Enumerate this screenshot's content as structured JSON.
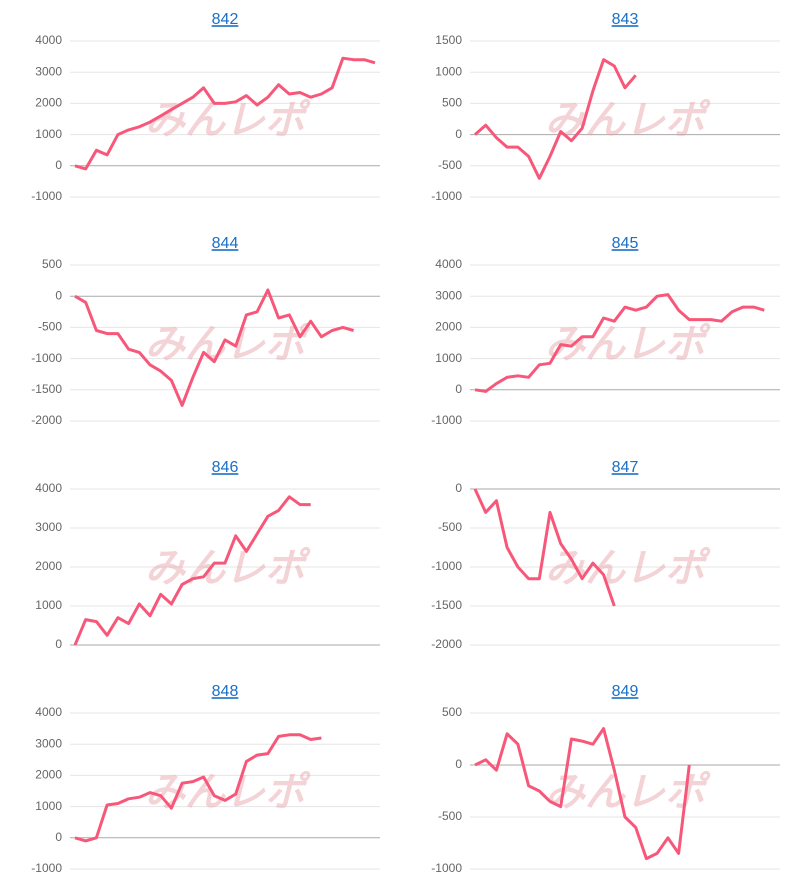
{
  "watermark": "みんレポ",
  "chart_data": [
    {
      "type": "line",
      "title": "842",
      "color": "#f7587a",
      "ylim": [
        -1000,
        4000
      ],
      "yticks": [
        -1000,
        0,
        1000,
        2000,
        3000,
        4000
      ],
      "grid": true,
      "values": [
        0,
        -100,
        500,
        350,
        1000,
        1150,
        1250,
        1400,
        1600,
        1800,
        2000,
        2200,
        2500,
        2000,
        2000,
        2050,
        2250,
        1950,
        2200,
        2600,
        2300,
        2350,
        2200,
        2300,
        2500,
        3450,
        3400,
        3400,
        3300
      ]
    },
    {
      "type": "line",
      "title": "843",
      "color": "#f7587a",
      "ylim": [
        -1000,
        1500
      ],
      "yticks": [
        -1000,
        -500,
        0,
        500,
        1000,
        1500
      ],
      "grid": true,
      "values": [
        0,
        150,
        -50,
        -200,
        -200,
        -350,
        -700,
        -350,
        50,
        -100,
        100,
        700,
        1200,
        1100,
        750,
        950
      ]
    },
    {
      "type": "line",
      "title": "844",
      "color": "#f7587a",
      "ylim": [
        -2000,
        500
      ],
      "yticks": [
        -2000,
        -1500,
        -1000,
        -500,
        0,
        500
      ],
      "grid": true,
      "values": [
        0,
        -100,
        -550,
        -600,
        -600,
        -850,
        -900,
        -1100,
        -1200,
        -1350,
        -1750,
        -1300,
        -900,
        -1050,
        -700,
        -800,
        -300,
        -250,
        100,
        -350,
        -300,
        -650,
        -400,
        -650,
        -550,
        -500,
        -550
      ]
    },
    {
      "type": "line",
      "title": "845",
      "color": "#f7587a",
      "ylim": [
        -1000,
        4000
      ],
      "yticks": [
        -1000,
        0,
        1000,
        2000,
        3000,
        4000
      ],
      "grid": true,
      "values": [
        0,
        -50,
        200,
        400,
        450,
        400,
        800,
        850,
        1450,
        1400,
        1700,
        1700,
        2300,
        2200,
        2650,
        2550,
        2650,
        3000,
        3050,
        2550,
        2250,
        2250,
        2250,
        2200,
        2500,
        2650,
        2650,
        2550
      ]
    },
    {
      "type": "line",
      "title": "846",
      "color": "#f7587a",
      "ylim": [
        0,
        4000
      ],
      "yticks": [
        0,
        1000,
        2000,
        3000,
        4000
      ],
      "grid": true,
      "values": [
        0,
        650,
        600,
        250,
        700,
        550,
        1050,
        750,
        1300,
        1050,
        1550,
        1700,
        1750,
        2100,
        2100,
        2800,
        2400,
        2850,
        3300,
        3450,
        3800,
        3600,
        3600
      ]
    },
    {
      "type": "line",
      "title": "847",
      "color": "#f7587a",
      "ylim": [
        -2000,
        0
      ],
      "yticks": [
        -2000,
        -1500,
        -1000,
        -500,
        0
      ],
      "grid": true,
      "values": [
        0,
        -300,
        -150,
        -750,
        -1000,
        -1150,
        -1150,
        -300,
        -700,
        -900,
        -1150,
        -950,
        -1100,
        -1500
      ]
    },
    {
      "type": "line",
      "title": "848",
      "color": "#f7587a",
      "ylim": [
        -1000,
        4000
      ],
      "yticks": [
        -1000,
        0,
        1000,
        2000,
        3000,
        4000
      ],
      "grid": true,
      "values": [
        0,
        -100,
        0,
        1050,
        1100,
        1250,
        1300,
        1450,
        1350,
        950,
        1750,
        1800,
        1950,
        1350,
        1200,
        1400,
        2450,
        2650,
        2700,
        3250,
        3300,
        3300,
        3150,
        3200
      ]
    },
    {
      "type": "line",
      "title": "849",
      "color": "#f7587a",
      "ylim": [
        -1000,
        500
      ],
      "yticks": [
        -1000,
        -500,
        0,
        500
      ],
      "grid": true,
      "values": [
        0,
        50,
        -50,
        300,
        200,
        -200,
        -250,
        -350,
        -400,
        250,
        230,
        200,
        350,
        -50,
        -500,
        -600,
        -900,
        -850,
        -700,
        -850,
        0
      ]
    }
  ]
}
